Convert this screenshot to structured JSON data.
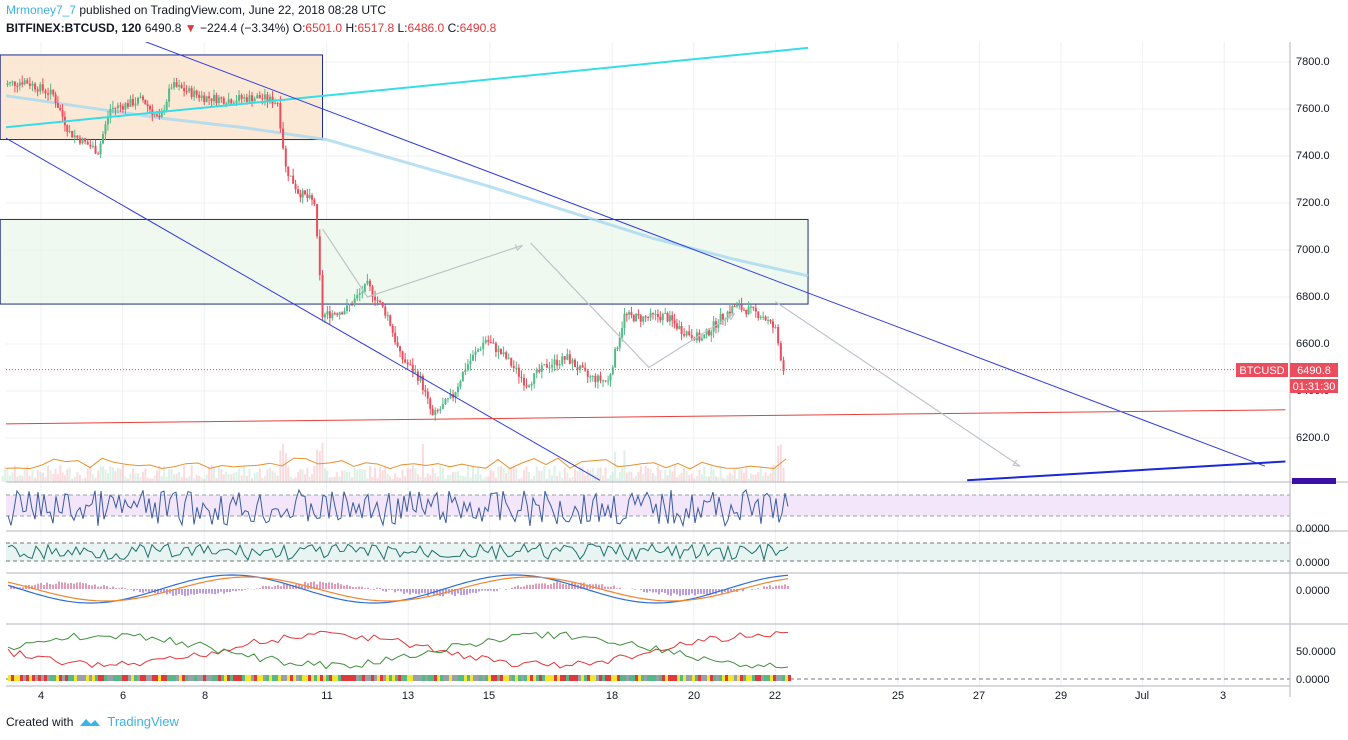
{
  "header": {
    "author": "Mrmoney7_7",
    "published": " published on TradingView.com, June 22, 2018 08:28 UTC",
    "symbol": "BITFINEX:BTCUSD, 120",
    "last": "6490.8",
    "change": "−224.4 (−3.34%)",
    "o_label": "O:",
    "o": "6501.0",
    "h_label": "H:",
    "h": "6517.8",
    "l_label": "L:",
    "l": "6486.0",
    "c_label": "C:",
    "c": "6490.8"
  },
  "price_axis": {
    "ticks": [
      "7800.0",
      "7600.0",
      "7400.0",
      "7200.0",
      "7000.0",
      "6800.0",
      "6600.0",
      "6400.0",
      "6200.0"
    ],
    "symbol_tag": "BTCUSD",
    "price_tag": "6490.8",
    "countdown_tag": "01:31:30"
  },
  "indicator_axes": {
    "rsi_tick": "0.0000",
    "osc_tick": "0.0000",
    "macd_tick": "0.0000",
    "dmi_ticks": [
      "50.0000",
      "0.0000"
    ]
  },
  "time_axis": {
    "ticks": [
      "4",
      "6",
      "8",
      "11",
      "13",
      "15",
      "18",
      "20",
      "22",
      "25",
      "27",
      "29",
      "Jul",
      "3"
    ]
  },
  "colors": {
    "up": "#53B987",
    "down": "#EB4D5C",
    "channel": "#2F3CE0",
    "cyan_line": "#36DCE8",
    "ma": "#A8D8F0",
    "support": "#E8403A"
  },
  "chart_data": {
    "type": "candlestick",
    "symbol": "BITFINEX:BTCUSD",
    "interval": "120",
    "x_range": [
      "Jun 3",
      "Jul 4"
    ],
    "ylim": [
      6020,
      7880
    ],
    "last_close": 6490.8,
    "ohlc_last": {
      "open": 6501.0,
      "high": 6517.8,
      "low": 6486.0,
      "close": 6490.8
    },
    "close_path": [
      {
        "day": 3.0,
        "close": 7700
      },
      {
        "day": 3.6,
        "close": 7720
      },
      {
        "day": 4.3,
        "close": 7660
      },
      {
        "day": 4.7,
        "close": 7500
      },
      {
        "day": 5.4,
        "close": 7420
      },
      {
        "day": 5.7,
        "close": 7600
      },
      {
        "day": 6.5,
        "close": 7640
      },
      {
        "day": 6.9,
        "close": 7550
      },
      {
        "day": 7.2,
        "close": 7700
      },
      {
        "day": 8.0,
        "close": 7650
      },
      {
        "day": 8.6,
        "close": 7640
      },
      {
        "day": 9.3,
        "close": 7650
      },
      {
        "day": 9.8,
        "close": 7630
      },
      {
        "day": 10.0,
        "close": 7350
      },
      {
        "day": 10.3,
        "close": 7250
      },
      {
        "day": 10.7,
        "close": 7200
      },
      {
        "day": 10.9,
        "close": 6720
      },
      {
        "day": 11.5,
        "close": 6750
      },
      {
        "day": 12.0,
        "close": 6850
      },
      {
        "day": 12.5,
        "close": 6720
      },
      {
        "day": 12.8,
        "close": 6550
      },
      {
        "day": 13.3,
        "close": 6450
      },
      {
        "day": 13.6,
        "close": 6290
      },
      {
        "day": 14.1,
        "close": 6380
      },
      {
        "day": 14.4,
        "close": 6500
      },
      {
        "day": 14.9,
        "close": 6620
      },
      {
        "day": 15.4,
        "close": 6540
      },
      {
        "day": 15.9,
        "close": 6430
      },
      {
        "day": 16.4,
        "close": 6510
      },
      {
        "day": 16.9,
        "close": 6540
      },
      {
        "day": 17.4,
        "close": 6460
      },
      {
        "day": 17.9,
        "close": 6440
      },
      {
        "day": 18.3,
        "close": 6720
      },
      {
        "day": 18.7,
        "close": 6710
      },
      {
        "day": 19.3,
        "close": 6720
      },
      {
        "day": 19.7,
        "close": 6660
      },
      {
        "day": 20.2,
        "close": 6620
      },
      {
        "day": 20.6,
        "close": 6700
      },
      {
        "day": 21.0,
        "close": 6760
      },
      {
        "day": 21.4,
        "close": 6740
      },
      {
        "day": 21.7,
        "close": 6720
      },
      {
        "day": 22.0,
        "close": 6660
      },
      {
        "day": 22.2,
        "close": 6490.8
      }
    ],
    "moving_average": [
      {
        "day": 3.0,
        "value": 7660
      },
      {
        "day": 5.0,
        "value": 7610
      },
      {
        "day": 7.0,
        "value": 7560
      },
      {
        "day": 9.0,
        "value": 7520
      },
      {
        "day": 11.0,
        "value": 7470
      },
      {
        "day": 13.0,
        "value": 7370
      },
      {
        "day": 15.0,
        "value": 7270
      },
      {
        "day": 17.0,
        "value": 7160
      },
      {
        "day": 19.0,
        "value": 7050
      },
      {
        "day": 21.0,
        "value": 6960
      },
      {
        "day": 22.8,
        "value": 6890
      }
    ],
    "drawings": {
      "resistance_zone": {
        "from_day": 3.0,
        "to_day": 10.9,
        "top": 7830,
        "bottom": 7470
      },
      "target_zone": {
        "from_day": 3.0,
        "to_day": 22.8,
        "top": 7130,
        "bottom": 6770
      },
      "cyan_trendline": [
        {
          "day": 3.0,
          "price": 7520
        },
        {
          "day": 22.8,
          "price": 7860
        }
      ],
      "upper_channel": [
        {
          "day": 6.2,
          "price": 7910
        },
        {
          "day": 34.0,
          "price": 6080
        }
      ],
      "lower_channel": [
        {
          "day": 3.0,
          "price": 7490
        },
        {
          "day": 17.7,
          "price": 6020
        }
      ],
      "support_line": [
        {
          "day": 3.0,
          "price": 6260
        },
        {
          "day": 34.5,
          "price": 6320
        }
      ],
      "lower_trend": [
        {
          "day": 26.7,
          "price": 6020
        },
        {
          "day": 34.5,
          "price": 6100
        }
      ],
      "projection_arrows": [
        [
          {
            "day": 10.9,
            "price": 7090
          },
          {
            "day": 12.0,
            "price": 6800
          },
          {
            "day": 15.8,
            "price": 7020
          }
        ],
        [
          {
            "day": 16.0,
            "price": 7030
          },
          {
            "day": 18.9,
            "price": 6500
          },
          {
            "day": 21.0,
            "price": 6730
          }
        ],
        [
          {
            "day": 22.0,
            "price": 6780
          },
          {
            "day": 28.0,
            "price": 6080
          }
        ]
      ]
    },
    "volume_baseline": 6020
  }
}
